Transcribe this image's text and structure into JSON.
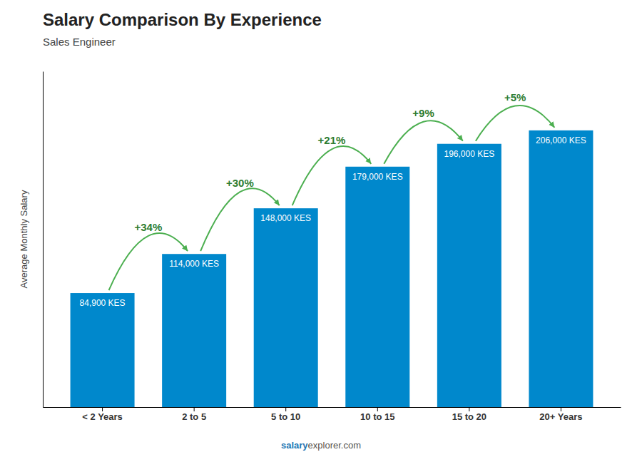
{
  "chart_data": {
    "type": "bar",
    "title": "Salary Comparison By Experience",
    "subtitle": "Sales Engineer",
    "ylabel": "Average Monthly Salary",
    "categories": [
      "< 2 Years",
      "2 to 5",
      "5 to 10",
      "10 to 15",
      "15 to 20",
      "20+ Years"
    ],
    "values": [
      84900,
      114000,
      148000,
      179000,
      196000,
      206000
    ],
    "value_labels": [
      "84,900 KES",
      "114,000 KES",
      "148,000 KES",
      "179,000 KES",
      "196,000 KES",
      "206,000 KES"
    ],
    "data_labels": true,
    "annotations": [
      "+34%",
      "+30%",
      "+21%",
      "+9%",
      "+5%"
    ],
    "footer": [
      "salary",
      "explorer.com"
    ],
    "color": "#0088cc",
    "ylim": [
      0,
      250000
    ],
    "tick_labels": "x",
    "grid": false
  }
}
